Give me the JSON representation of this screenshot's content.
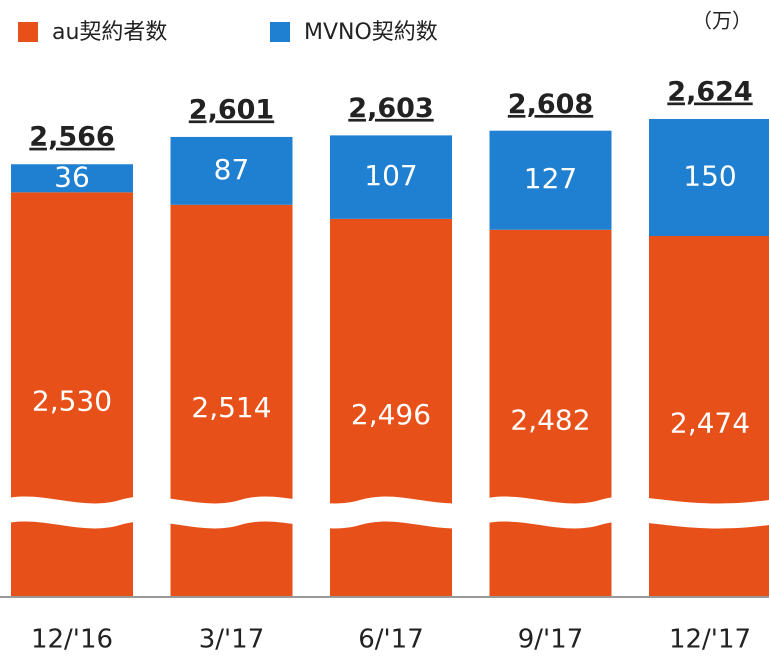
{
  "chart_data": {
    "type": "stacked-bar",
    "unit": "（万）",
    "categories": [
      "12/'16",
      "3/'17",
      "6/'17",
      "9/'17",
      "12/'17"
    ],
    "series": [
      {
        "name": "au契約者数",
        "color": "#e8501a",
        "values": [
          2530,
          2514,
          2496,
          2482,
          2474
        ],
        "value_labels": [
          "2,530",
          "2,514",
          "2,496",
          "2,482",
          "2,474"
        ]
      },
      {
        "name": "MVNO契約数",
        "color": "#1f7fd0",
        "values": [
          36,
          87,
          107,
          127,
          150
        ]
      }
    ],
    "totals": {
      "values": [
        2566,
        2601,
        2603,
        2608,
        2624
      ],
      "value_labels": [
        "2,566",
        "2,601",
        "2,603",
        "2,608",
        "2,624"
      ]
    },
    "legend": "top-left"
  }
}
